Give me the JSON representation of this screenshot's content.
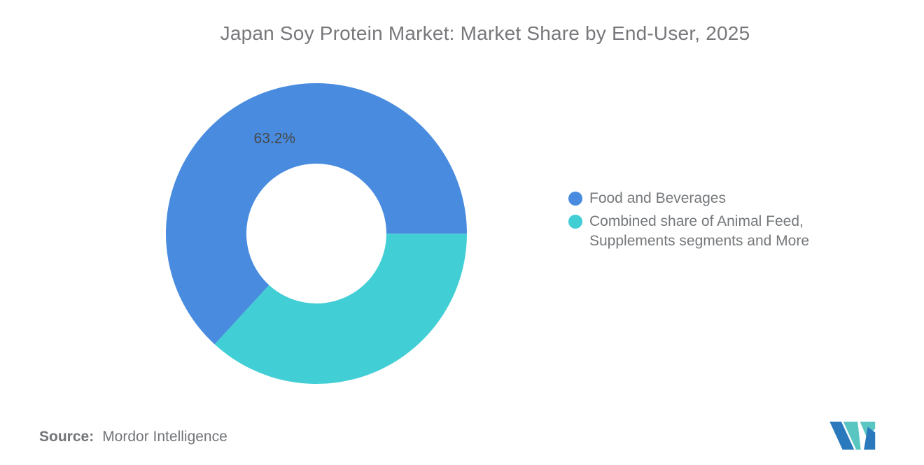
{
  "title": "Japan Soy Protein Market: Market Share by End-User, 2025",
  "chart_data": {
    "type": "pie",
    "subtype": "donut",
    "title": "Japan Soy Protein Market: Market Share by End-User, 2025",
    "slices": [
      {
        "name": "Food and Beverages",
        "value": 63.2,
        "color": "#498CDF",
        "data_label": "63.2%"
      },
      {
        "name": "Combined share of Animal Feed, Supplements segments and More",
        "value": 36.8,
        "color": "#42CED5",
        "data_label": ""
      }
    ],
    "start_angle_deg": 222.52,
    "direction": "clockwise",
    "inner_radius_ratio": 0.465,
    "legend_position": "right",
    "data_label_color": "#46484B",
    "background": "#FFFFFF"
  },
  "legend": {
    "items": [
      {
        "label": "Food and Beverages",
        "color": "#498CDF"
      },
      {
        "label": "Combined share of Animal Feed,\nSupplements segments and More",
        "color": "#42CED5"
      }
    ]
  },
  "source": {
    "label": "Source:",
    "value": "Mordor Intelligence"
  },
  "brand": {
    "logo_name": "mordor-intelligence-logo",
    "logo_blue": "#2B79BD",
    "logo_teal": "#5AC6C2"
  },
  "colors": {
    "title_text": "#77787B",
    "legend_text": "#75787B",
    "source_text": "#737578"
  }
}
